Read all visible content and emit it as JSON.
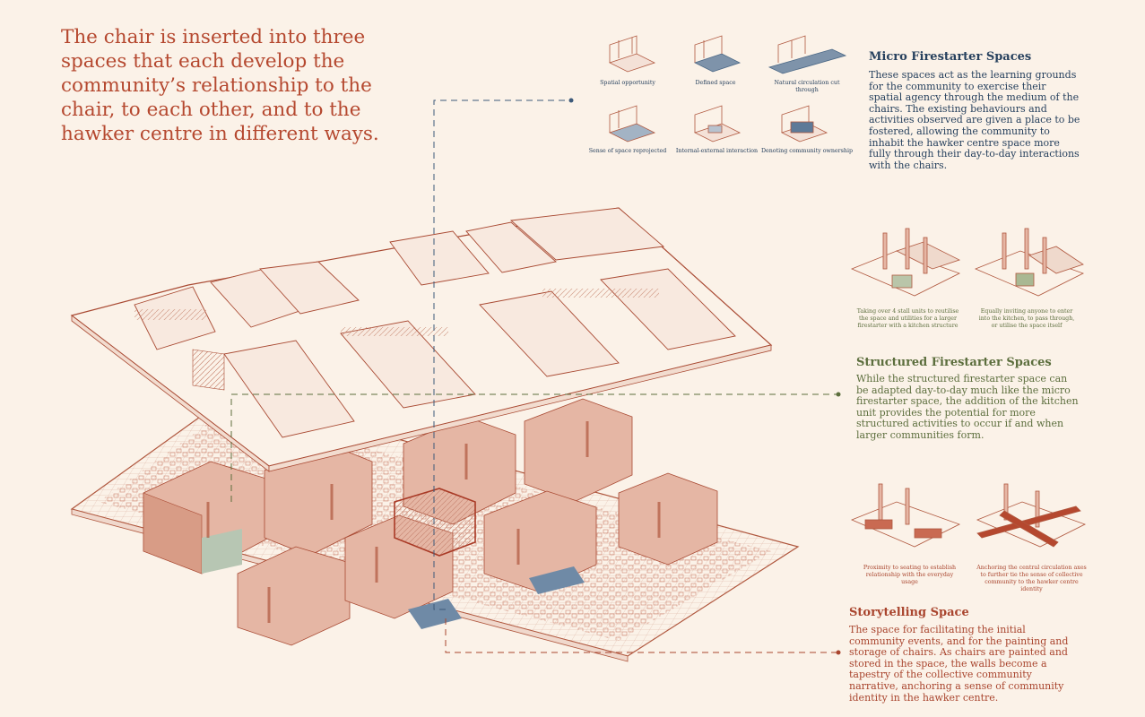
{
  "intro": "The chair is inserted into three spaces that each develop the community’s relationship to the chair, to each other, and to the hawker centre in different ways.",
  "micro": {
    "title": "Micro Firestarter Spaces",
    "body": "These spaces act as the learning grounds for the community to exercise their spatial agency through the medium of the chairs. The existing behaviours and activities observed are given a place to be fostered, allowing the community to inhabit the hawker centre space more fully through their day-to-day interactions with the chairs.",
    "captions": [
      "Spatial opportunity",
      "Defined space",
      "Natural circulation cut through",
      "Sense of space reprojected",
      "Internal-external interaction",
      "Denoting community ownership"
    ]
  },
  "structured": {
    "title": "Structured Firestarter Spaces",
    "body": "While the structured firestarter space can be adapted day-to-day much like the micro firestarter space, the addition of the kitchen unit provides the potential for more structured activities to occur if and when larger communities form.",
    "captions": [
      "Taking over 4 stall units to reutilise the space and utilities for a larger firestarter with a kitchen structure",
      "Equally inviting anyone to enter into the kitchen, to pass through, or utilise the space itself"
    ]
  },
  "storytelling": {
    "title": "Storytelling Space",
    "body": "The space for facilitating the initial community events, and for the painting and storage of chairs. As chairs are painted and stored in the space, the walls become a tapestry of the collective community narrative, anchoring a sense of community identity in the hawker centre.",
    "captions": [
      "Proximity to seating to establish relationship with the everyday usage",
      "Anchoring the central circulation axes to further tie the sense of collective community to the hawker centre identity"
    ]
  },
  "colors": {
    "terracotta": "#b5482f",
    "navy": "#27415e",
    "olive": "#5c6e3d",
    "background": "#fbf2e8",
    "line": "#b0583f"
  }
}
